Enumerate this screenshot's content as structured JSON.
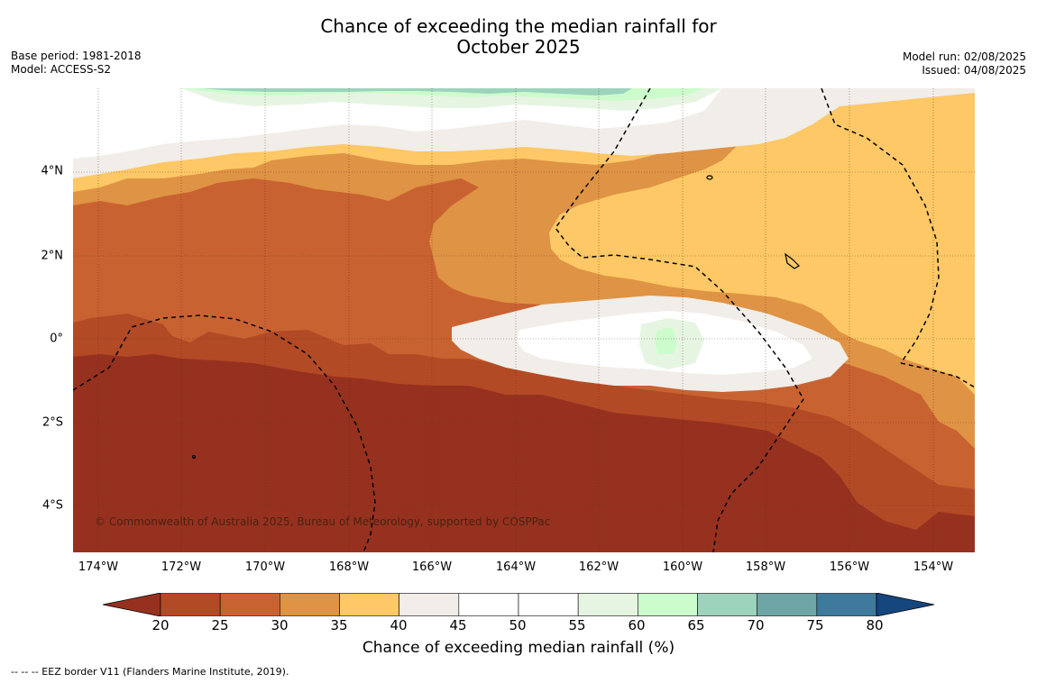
{
  "title_line1": "Chance of exceeding the median rainfall for",
  "title_line2": "October 2025",
  "meta_left": {
    "base_period": "Base period: 1981-2018",
    "model": "Model: ACCESS-S2"
  },
  "meta_right": {
    "model_run": "Model run: 02/08/2025",
    "issued": "Issued: 04/08/2025"
  },
  "map": {
    "lat_labels": [
      "4°N",
      "2°N",
      "0°",
      "2°S",
      "4°S"
    ],
    "lon_labels": [
      "174°W",
      "172°W",
      "170°W",
      "168°W",
      "166°W",
      "164°W",
      "162°W",
      "160°W",
      "158°W",
      "156°W",
      "154°W"
    ],
    "copyright": "© Commonwealth of Australia 2025, Bureau of Meteorology, supported by COSPPac"
  },
  "colorbar": {
    "label": "Chance of exceeding median rainfall (%)",
    "ticks": [
      "20",
      "25",
      "30",
      "35",
      "40",
      "45",
      "50",
      "55",
      "60",
      "65",
      "70",
      "75",
      "80"
    ],
    "colors": [
      "#97311f",
      "#b34a26",
      "#c96231",
      "#df9344",
      "#fdc865",
      "#f1ede8",
      "#ffffff",
      "#ffffff",
      "#e6f5e2",
      "#ccfccc",
      "#9dd3bc",
      "#70a5a8",
      "#3e7a9c",
      "#15467e"
    ]
  },
  "legend_note": "--  --  -- EEZ border V11 (Flanders Marine Institute, 2019)."
}
